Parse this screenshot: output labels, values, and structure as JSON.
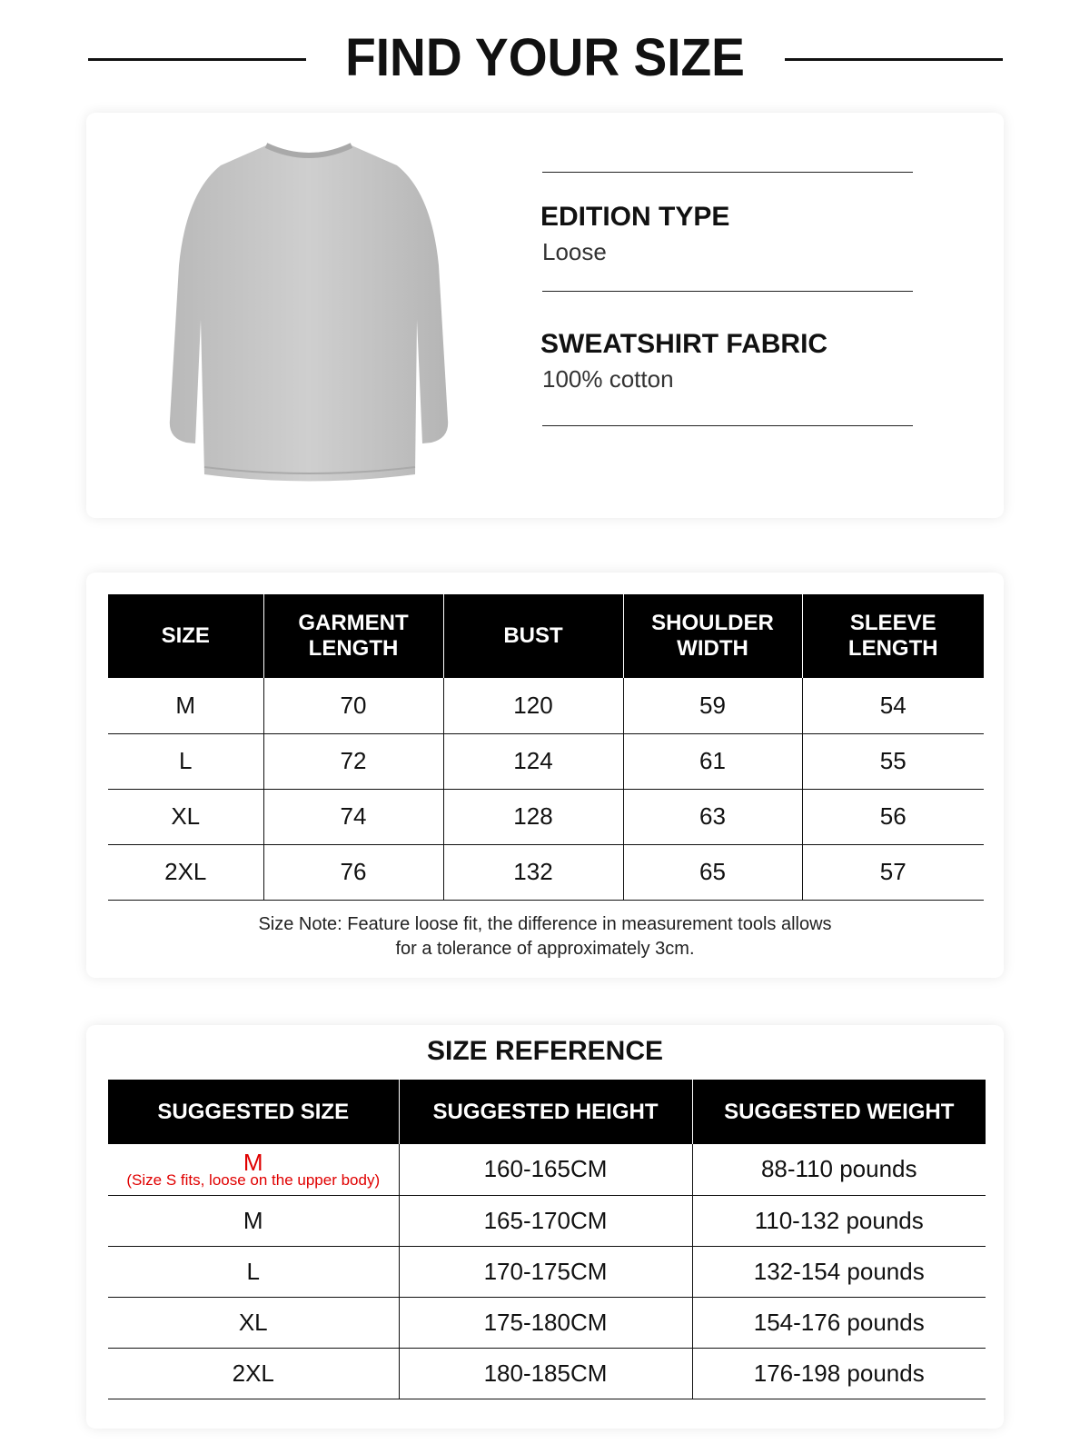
{
  "title": "FIND YOUR SIZE",
  "product": {
    "edition_label": "EDITION TYPE",
    "edition_value": "Loose",
    "fabric_label": "SWEATSHIRT FABRIC",
    "fabric_value": "100% cotton",
    "image": "gray-sweatshirt"
  },
  "size_chart": {
    "headers": [
      "SIZE",
      "GARMENT LENGTH",
      "BUST",
      "SHOULDER WIDTH",
      "SLEEVE LENGTH"
    ],
    "rows": [
      [
        "M",
        "70",
        "120",
        "59",
        "54"
      ],
      [
        "L",
        "72",
        "124",
        "61",
        "55"
      ],
      [
        "XL",
        "74",
        "128",
        "63",
        "56"
      ],
      [
        "2XL",
        "76",
        "132",
        "65",
        "57"
      ]
    ],
    "note_line1": "Size Note: Feature loose fit, the difference in measurement tools allows",
    "note_line2": "for a tolerance of approximately 3cm."
  },
  "size_reference": {
    "title": "SIZE REFERENCE",
    "headers": [
      "SUGGESTED SIZE",
      "SUGGESTED HEIGHT",
      "SUGGESTED WEIGHT"
    ],
    "first_row": {
      "size": "M",
      "size_note": "(Size S fits, loose on the upper body)",
      "height": "160-165CM",
      "weight": "88-110 pounds"
    },
    "rows": [
      [
        "M",
        "165-170CM",
        "110-132 pounds"
      ],
      [
        "L",
        "170-175CM",
        "132-154 pounds"
      ],
      [
        "XL",
        "175-180CM",
        "154-176 pounds"
      ],
      [
        "2XL",
        "180-185CM",
        "176-198 pounds"
      ]
    ],
    "highlight_color": "#e00000"
  }
}
